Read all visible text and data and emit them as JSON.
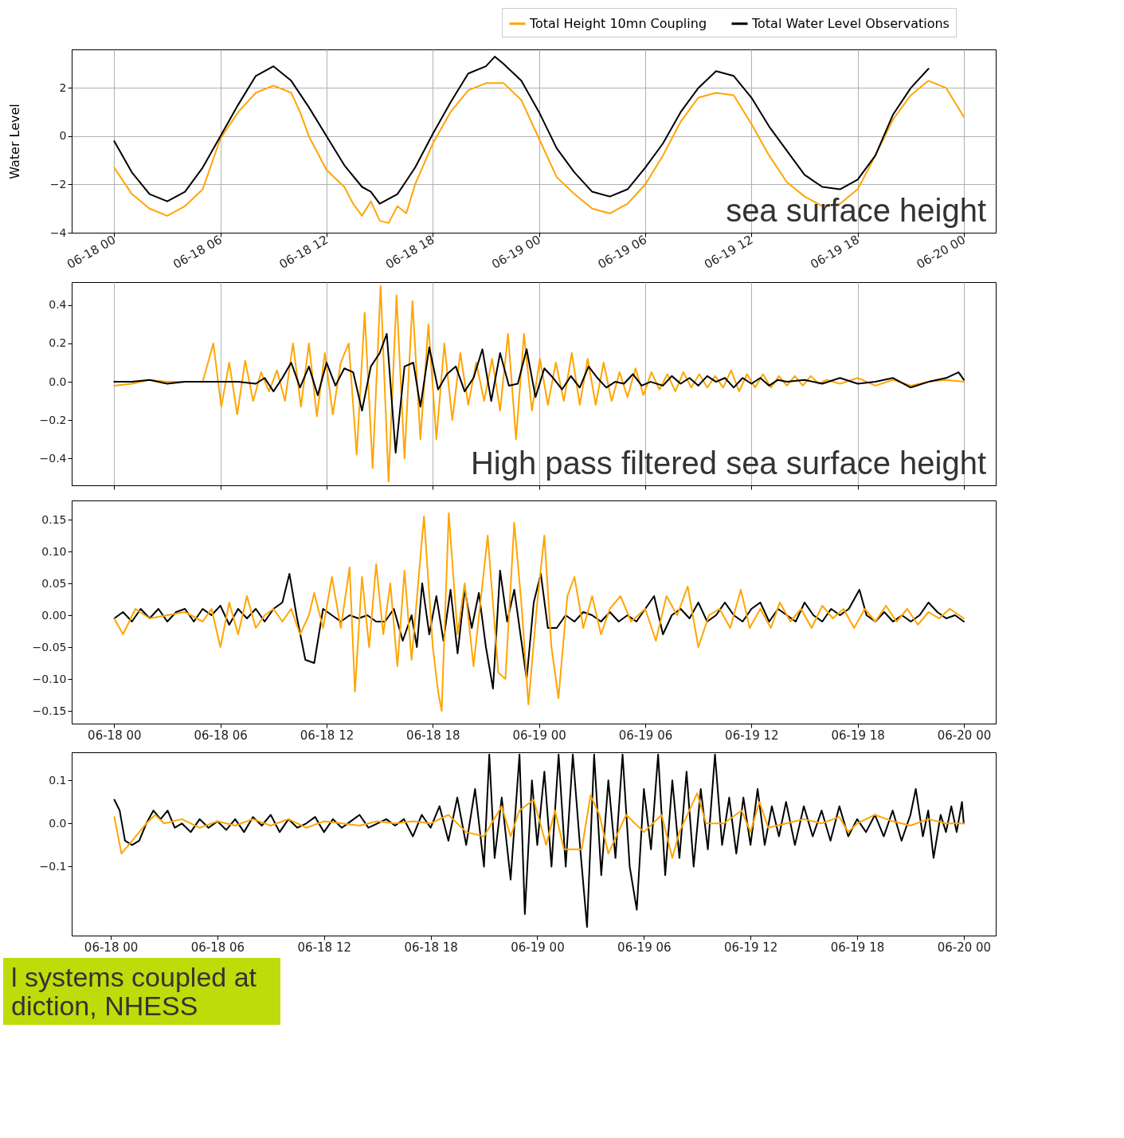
{
  "chart_data": [
    {
      "type": "line",
      "ylabel": "Water Level",
      "xlim": [
        "--06-17T21:36",
        "--06-20T01:48"
      ],
      "ylim": [
        -4,
        3.6
      ],
      "xticks": [
        {
          "value": "--06-18T00:00",
          "label": "06-18 00"
        },
        {
          "value": "--06-18T06:00",
          "label": "06-18 06"
        },
        {
          "value": "--06-18T12:00",
          "label": "06-18 12"
        },
        {
          "value": "--06-18T18:00",
          "label": "06-18 18"
        },
        {
          "value": "--06-19T00:00",
          "label": "06-19 00"
        },
        {
          "value": "--06-19T06:00",
          "label": "06-19 06"
        },
        {
          "value": "--06-19T12:00",
          "label": "06-19 12"
        },
        {
          "value": "--06-19T18:00",
          "label": "06-19 18"
        },
        {
          "value": "--06-20T00:00",
          "label": "06-20 00"
        }
      ],
      "yticks": [
        {
          "value": -4,
          "label": "−4"
        },
        {
          "value": -2,
          "label": "−2"
        },
        0,
        2
      ],
      "grid": true,
      "legend": "top right",
      "annotations": [
        "sea surface height"
      ],
      "series": [
        {
          "name": "Total Height 10mn Coupling",
          "color": "#ffa500",
          "x": [
            "--06-18T00:00",
            "--06-18T01:00",
            "--06-18T02:00",
            "--06-18T03:00",
            "--06-18T04:00",
            "--06-18T05:00",
            "--06-18T06:00",
            "--06-18T07:00",
            "--06-18T08:00",
            "--06-18T09:00",
            "--06-18T10:00",
            "--06-18T10:30",
            "--06-18T11:00",
            "--06-18T12:00",
            "--06-18T13:00",
            "--06-18T13:30",
            "--06-18T14:00",
            "--06-18T14:30",
            "--06-18T15:00",
            "--06-18T15:30",
            "--06-18T16:00",
            "--06-18T16:30",
            "--06-18T17:00",
            "--06-18T18:00",
            "--06-18T19:00",
            "--06-18T20:00",
            "--06-18T21:00",
            "--06-18T22:00",
            "--06-18T23:00",
            "--06-19T00:00",
            "--06-19T01:00",
            "--06-19T02:00",
            "--06-19T03:00",
            "--06-19T04:00",
            "--06-19T05:00",
            "--06-19T06:00",
            "--06-19T07:00",
            "--06-19T08:00",
            "--06-19T09:00",
            "--06-19T10:00",
            "--06-19T11:00",
            "--06-19T12:00",
            "--06-19T13:00",
            "--06-19T14:00",
            "--06-19T15:00",
            "--06-19T16:00",
            "--06-19T17:00",
            "--06-19T18:00",
            "--06-19T19:00",
            "--06-19T20:00",
            "--06-19T21:00",
            "--06-19T22:00",
            "--06-19T23:00",
            "--06-20T00:00"
          ],
          "values": [
            -1.3,
            -2.4,
            -3.0,
            -3.3,
            -2.9,
            -2.2,
            -0.1,
            1.0,
            1.8,
            2.1,
            1.8,
            1.0,
            0.0,
            -1.4,
            -2.1,
            -2.8,
            -3.3,
            -2.7,
            -3.5,
            -3.6,
            -2.9,
            -3.2,
            -2.0,
            -0.3,
            1.0,
            1.9,
            2.2,
            2.2,
            1.5,
            -0.1,
            -1.7,
            -2.4,
            -3.0,
            -3.2,
            -2.8,
            -2.0,
            -0.8,
            0.6,
            1.6,
            1.8,
            1.7,
            0.5,
            -0.8,
            -1.9,
            -2.5,
            -2.9,
            -2.8,
            -2.2,
            -0.8,
            0.7,
            1.7,
            2.3,
            2.0,
            0.8
          ]
        },
        {
          "name": "Total Water Level Observations",
          "color": "#000000",
          "x": [
            "--06-18T00:00",
            "--06-18T01:00",
            "--06-18T02:00",
            "--06-18T03:00",
            "--06-18T04:00",
            "--06-18T05:00",
            "--06-18T06:00",
            "--06-18T07:00",
            "--06-18T08:00",
            "--06-18T09:00",
            "--06-18T10:00",
            "--06-18T11:00",
            "--06-18T12:00",
            "--06-18T13:00",
            "--06-18T14:00",
            "--06-18T14:30",
            "--06-18T15:00",
            "--06-18T16:00",
            "--06-18T17:00",
            "--06-18T18:00",
            "--06-18T19:00",
            "--06-18T20:00",
            "--06-18T21:00",
            "--06-18T21:30",
            "--06-18T22:00",
            "--06-18T23:00",
            "--06-19T00:00",
            "--06-19T01:00",
            "--06-19T02:00",
            "--06-19T03:00",
            "--06-19T04:00",
            "--06-19T05:00",
            "--06-19T06:00",
            "--06-19T07:00",
            "--06-19T08:00",
            "--06-19T09:00",
            "--06-19T10:00",
            "--06-19T11:00",
            "--06-19T12:00",
            "--06-19T13:00",
            "--06-19T14:00",
            "--06-19T15:00",
            "--06-19T16:00",
            "--06-19T17:00",
            "--06-19T18:00",
            "--06-19T19:00",
            "--06-19T20:00",
            "--06-19T21:00",
            "--06-19T22:00"
          ],
          "values": [
            -0.2,
            -1.5,
            -2.4,
            -2.7,
            -2.3,
            -1.3,
            0.0,
            1.3,
            2.5,
            2.9,
            2.3,
            1.2,
            0.0,
            -1.2,
            -2.1,
            -2.3,
            -2.8,
            -2.4,
            -1.3,
            0.1,
            1.4,
            2.6,
            2.9,
            3.3,
            3.0,
            2.3,
            1.0,
            -0.5,
            -1.5,
            -2.3,
            -2.5,
            -2.2,
            -1.3,
            -0.3,
            1.0,
            2.0,
            2.7,
            2.5,
            1.6,
            0.4,
            -0.6,
            -1.6,
            -2.1,
            -2.2,
            -1.8,
            -0.8,
            0.9,
            2.0,
            2.8
          ]
        }
      ]
    },
    {
      "type": "line",
      "xlim": [
        "--06-17T21:36",
        "--06-20T01:48"
      ],
      "ylim": [
        -0.54,
        0.52
      ],
      "xticks": [
        {
          "value": "--06-18T00:00",
          "label": null
        },
        {
          "value": "--06-18T06:00",
          "label": null
        },
        {
          "value": "--06-18T12:00",
          "label": null
        },
        {
          "value": "--06-18T18:00",
          "label": null
        },
        {
          "value": "--06-19T00:00",
          "label": null
        },
        {
          "value": "--06-19T06:00",
          "label": null
        },
        {
          "value": "--06-19T12:00",
          "label": null
        },
        {
          "value": "--06-19T18:00",
          "label": null
        },
        {
          "value": "--06-20T00:00",
          "label": null
        }
      ],
      "yticks": [
        {
          "value": -0.4,
          "label": "−0.4"
        },
        {
          "value": -0.2,
          "label": "−0.2"
        },
        {
          "value": 0,
          "label": "0.0"
        },
        0.2,
        0.4
      ],
      "grid": "x",
      "tick_labels": "y",
      "annotations": [
        "High pass filtered sea surface height"
      ],
      "series": [
        {
          "color": "#ffa500",
          "x": [
            "--06-18T00:00",
            "--06-18T01:00",
            "--06-18T02:00",
            "--06-18T03:00",
            "--06-18T04:00",
            "--06-18T05:00",
            "--06-18T05:36",
            "--06-18T06:03",
            "--06-18T06:30",
            "--06-18T06:57",
            "--06-18T07:24",
            "--06-18T07:51",
            "--06-18T08:18",
            "--06-18T08:45",
            "--06-18T09:12",
            "--06-18T09:39",
            "--06-18T10:06",
            "--06-18T10:33",
            "--06-18T11:00",
            "--06-18T11:27",
            "--06-18T11:54",
            "--06-18T12:21",
            "--06-18T12:48",
            "--06-18T13:15",
            "--06-18T13:42",
            "--06-18T14:09",
            "--06-18T14:36",
            "--06-18T15:03",
            "--06-18T15:30",
            "--06-18T15:57",
            "--06-18T16:24",
            "--06-18T16:51",
            "--06-18T17:18",
            "--06-18T17:45",
            "--06-18T18:12",
            "--06-18T18:39",
            "--06-18T19:06",
            "--06-18T19:33",
            "--06-18T20:00",
            "--06-18T20:27",
            "--06-18T20:54",
            "--06-18T21:21",
            "--06-18T21:48",
            "--06-18T22:15",
            "--06-18T22:42",
            "--06-18T23:09",
            "--06-18T23:36",
            "--06-19T00:03",
            "--06-19T00:30",
            "--06-19T00:57",
            "--06-19T01:24",
            "--06-19T01:51",
            "--06-19T02:18",
            "--06-19T02:45",
            "--06-19T03:12",
            "--06-19T03:39",
            "--06-19T04:06",
            "--06-19T04:33",
            "--06-19T05:00",
            "--06-19T05:27",
            "--06-19T05:54",
            "--06-19T06:21",
            "--06-19T06:48",
            "--06-19T07:15",
            "--06-19T07:42",
            "--06-19T08:09",
            "--06-19T08:36",
            "--06-19T09:03",
            "--06-19T09:30",
            "--06-19T09:57",
            "--06-19T10:24",
            "--06-19T10:51",
            "--06-19T11:18",
            "--06-19T11:45",
            "--06-19T12:12",
            "--06-19T12:39",
            "--06-19T13:06",
            "--06-19T13:33",
            "--06-19T14:00",
            "--06-19T14:27",
            "--06-19T14:54",
            "--06-19T15:21",
            "--06-19T15:48",
            "--06-19T16:15",
            "--06-19T17:00",
            "--06-19T18:00",
            "--06-19T19:00",
            "--06-19T20:00",
            "--06-19T21:00",
            "--06-19T22:00",
            "--06-19T23:00",
            "--06-20T00:00"
          ],
          "values": [
            -0.02,
            -0.01,
            0.01,
            0.0,
            0.0,
            0.0,
            0.2,
            -0.13,
            0.1,
            -0.17,
            0.11,
            -0.1,
            0.05,
            -0.05,
            0.06,
            -0.1,
            0.2,
            -0.13,
            0.2,
            -0.18,
            0.15,
            -0.17,
            0.1,
            0.2,
            -0.38,
            0.36,
            -0.45,
            0.5,
            -0.52,
            0.45,
            -0.4,
            0.42,
            -0.3,
            0.3,
            -0.3,
            0.2,
            -0.2,
            0.15,
            -0.12,
            0.1,
            -0.1,
            0.12,
            -0.15,
            0.25,
            -0.3,
            0.25,
            -0.15,
            0.12,
            -0.12,
            0.1,
            -0.1,
            0.15,
            -0.12,
            0.12,
            -0.12,
            0.1,
            -0.1,
            0.05,
            -0.08,
            0.07,
            -0.07,
            0.05,
            -0.04,
            0.04,
            -0.05,
            0.05,
            -0.03,
            0.04,
            -0.03,
            0.03,
            -0.03,
            0.06,
            -0.05,
            0.04,
            -0.03,
            0.04,
            -0.03,
            0.03,
            -0.02,
            0.03,
            -0.02,
            0.03,
            -0.01,
            0.01,
            -0.01,
            0.02,
            -0.02,
            0.01,
            -0.02,
            0.0,
            0.01,
            0.0
          ]
        },
        {
          "color": "#000000",
          "x": [
            "--06-18T00:00",
            "--06-18T01:00",
            "--06-18T02:00",
            "--06-18T03:00",
            "--06-18T04:00",
            "--06-18T05:00",
            "--06-18T06:00",
            "--06-18T07:00",
            "--06-18T08:00",
            "--06-18T08:30",
            "--06-18T09:00",
            "--06-18T09:30",
            "--06-18T10:00",
            "--06-18T10:30",
            "--06-18T11:00",
            "--06-18T11:30",
            "--06-18T12:00",
            "--06-18T12:30",
            "--06-18T13:00",
            "--06-18T13:30",
            "--06-18T14:00",
            "--06-18T14:30",
            "--06-18T15:00",
            "--06-18T15:24",
            "--06-18T15:54",
            "--06-18T16:24",
            "--06-18T16:54",
            "--06-18T17:18",
            "--06-18T17:48",
            "--06-18T18:18",
            "--06-18T18:48",
            "--06-18T19:18",
            "--06-18T19:48",
            "--06-18T20:18",
            "--06-18T20:48",
            "--06-18T21:18",
            "--06-18T21:48",
            "--06-18T22:18",
            "--06-18T22:48",
            "--06-18T23:18",
            "--06-18T23:48",
            "--06-19T00:18",
            "--06-19T00:48",
            "--06-19T01:18",
            "--06-19T01:48",
            "--06-19T02:18",
            "--06-19T02:48",
            "--06-19T03:18",
            "--06-19T03:48",
            "--06-19T04:18",
            "--06-19T04:48",
            "--06-19T05:18",
            "--06-19T05:48",
            "--06-19T06:18",
            "--06-19T07:00",
            "--06-19T07:30",
            "--06-19T08:00",
            "--06-19T08:30",
            "--06-19T09:00",
            "--06-19T09:30",
            "--06-19T10:00",
            "--06-19T10:30",
            "--06-19T11:00",
            "--06-19T11:30",
            "--06-19T12:00",
            "--06-19T12:30",
            "--06-19T13:00",
            "--06-19T13:30",
            "--06-19T14:00",
            "--06-19T15:00",
            "--06-19T16:00",
            "--06-19T17:00",
            "--06-19T18:00",
            "--06-19T19:00",
            "--06-19T20:00",
            "--06-19T21:00",
            "--06-19T22:00",
            "--06-19T23:00",
            "--06-19T23:42",
            "--06-20T00:00"
          ],
          "values": [
            0.0,
            0.0,
            0.01,
            -0.01,
            0.0,
            0.0,
            0.0,
            0.0,
            -0.01,
            0.02,
            -0.05,
            0.02,
            0.1,
            -0.03,
            0.08,
            -0.07,
            0.1,
            -0.02,
            0.07,
            0.05,
            -0.15,
            0.08,
            0.15,
            0.25,
            -0.37,
            0.08,
            0.1,
            -0.13,
            0.18,
            -0.04,
            0.04,
            0.08,
            -0.05,
            0.02,
            0.17,
            -0.1,
            0.15,
            -0.02,
            -0.01,
            0.17,
            -0.08,
            0.07,
            0.02,
            -0.04,
            0.03,
            -0.03,
            0.08,
            0.02,
            -0.03,
            0.0,
            -0.01,
            0.04,
            -0.02,
            0.0,
            -0.02,
            0.03,
            -0.01,
            0.02,
            -0.02,
            0.03,
            0.0,
            0.02,
            -0.03,
            0.02,
            -0.01,
            0.02,
            -0.02,
            0.01,
            0.0,
            0.01,
            -0.01,
            0.02,
            -0.01,
            0.0,
            0.02,
            -0.03,
            0.0,
            0.02,
            0.05,
            0.01
          ]
        }
      ]
    },
    {
      "type": "line",
      "xlim": [
        "--06-17T21:36",
        "--06-20T01:48"
      ],
      "ylim": [
        -0.17,
        0.18
      ],
      "xticks": [
        {
          "value": "--06-18T00:00",
          "label": "06-18 00"
        },
        {
          "value": "--06-18T06:00",
          "label": "06-18 06"
        },
        {
          "value": "--06-18T12:00",
          "label": "06-18 12"
        },
        {
          "value": "--06-18T18:00",
          "label": "06-18 18"
        },
        {
          "value": "--06-19T00:00",
          "label": "06-19 00"
        },
        {
          "value": "--06-19T06:00",
          "label": "06-19 06"
        },
        {
          "value": "--06-19T12:00",
          "label": "06-19 12"
        },
        {
          "value": "--06-19T18:00",
          "label": "06-19 18"
        },
        {
          "value": "--06-20T00:00",
          "label": "06-20 00"
        }
      ],
      "yticks": [
        {
          "value": -0.15,
          "label": "−0.15"
        },
        {
          "value": -0.1,
          "label": "−0.10"
        },
        {
          "value": -0.05,
          "label": "−0.05"
        },
        {
          "value": 0,
          "label": "0.00"
        },
        0.05,
        {
          "value": 0.1,
          "label": "0.10"
        },
        0.15
      ],
      "series": [
        {
          "color": "#000000",
          "x": [
            "--06-18T00:00",
            "--06-18T00:30",
            "--06-18T01:00",
            "--06-18T01:30",
            "--06-18T02:00",
            "--06-18T02:30",
            "--06-18T03:00",
            "--06-18T03:30",
            "--06-18T04:00",
            "--06-18T04:30",
            "--06-18T05:00",
            "--06-18T05:30",
            "--06-18T06:00",
            "--06-18T06:30",
            "--06-18T07:00",
            "--06-18T07:30",
            "--06-18T08:00",
            "--06-18T08:30",
            "--06-18T09:00",
            "--06-18T09:30",
            "--06-18T09:54",
            "--06-18T10:18",
            "--06-18T10:48",
            "--06-18T11:18",
            "--06-18T11:48",
            "--06-18T12:18",
            "--06-18T12:48",
            "--06-18T13:18",
            "--06-18T13:48",
            "--06-18T14:18",
            "--06-18T14:48",
            "--06-18T15:18",
            "--06-18T15:48",
            "--06-18T16:18",
            "--06-18T16:48",
            "--06-18T17:06",
            "--06-18T17:24",
            "--06-18T17:48",
            "--06-18T18:12",
            "--06-18T18:36",
            "--06-18T19:00",
            "--06-18T19:24",
            "--06-18T19:48",
            "--06-18T20:12",
            "--06-18T20:36",
            "--06-18T21:00",
            "--06-18T21:24",
            "--06-18T21:48",
            "--06-18T22:12",
            "--06-18T22:36",
            "--06-18T23:00",
            "--06-18T23:18",
            "--06-18T23:42",
            "--06-19T00:06",
            "--06-19T00:30",
            "--06-19T01:00",
            "--06-19T01:30",
            "--06-19T02:00",
            "--06-19T02:30",
            "--06-19T03:00",
            "--06-19T03:30",
            "--06-19T04:00",
            "--06-19T04:30",
            "--06-19T05:00",
            "--06-19T05:30",
            "--06-19T06:00",
            "--06-19T06:30",
            "--06-19T07:00",
            "--06-19T07:30",
            "--06-19T08:00",
            "--06-19T08:30",
            "--06-19T09:00",
            "--06-19T09:30",
            "--06-19T10:00",
            "--06-19T10:30",
            "--06-19T11:00",
            "--06-19T11:30",
            "--06-19T12:00",
            "--06-19T12:30",
            "--06-19T13:00",
            "--06-19T13:30",
            "--06-19T14:00",
            "--06-19T14:30",
            "--06-19T15:00",
            "--06-19T15:30",
            "--06-19T16:00",
            "--06-19T16:30",
            "--06-19T17:00",
            "--06-19T17:30",
            "--06-19T18:06",
            "--06-19T18:30",
            "--06-19T19:00",
            "--06-19T19:30",
            "--06-19T20:00",
            "--06-19T20:30",
            "--06-19T21:00",
            "--06-19T21:30",
            "--06-19T22:00",
            "--06-19T22:30",
            "--06-19T23:00",
            "--06-19T23:30",
            "--06-20T00:00"
          ],
          "values": [
            -0.005,
            0.005,
            -0.01,
            0.01,
            -0.005,
            0.01,
            -0.01,
            0.005,
            0.01,
            -0.01,
            0.01,
            0.0,
            0.015,
            -0.015,
            0.01,
            -0.005,
            0.01,
            -0.01,
            0.01,
            0.02,
            0.065,
            0.0,
            -0.07,
            -0.075,
            0.01,
            0.0,
            -0.01,
            0.0,
            -0.005,
            0.0,
            -0.01,
            -0.01,
            0.01,
            -0.04,
            0.0,
            -0.05,
            0.05,
            -0.03,
            0.03,
            -0.04,
            0.04,
            -0.06,
            0.04,
            -0.02,
            0.035,
            -0.05,
            -0.115,
            0.07,
            -0.01,
            0.04,
            -0.04,
            -0.1,
            0.02,
            0.065,
            -0.02,
            -0.02,
            0.0,
            -0.01,
            0.005,
            0.0,
            -0.01,
            0.005,
            -0.01,
            0.0,
            -0.01,
            0.01,
            0.03,
            -0.03,
            0.0,
            0.01,
            -0.005,
            0.02,
            -0.01,
            0.0,
            0.02,
            0.0,
            -0.01,
            0.01,
            0.02,
            -0.01,
            0.01,
            0.0,
            -0.01,
            0.02,
            0.0,
            -0.01,
            0.01,
            0.0,
            0.01,
            0.04,
            0.0,
            -0.01,
            0.005,
            -0.01,
            0.0,
            -0.01,
            0.0,
            0.02,
            0.005,
            -0.005,
            0.0,
            -0.01
          ]
        },
        {
          "color": "#ffa500",
          "x": [
            "--06-18T00:00",
            "--06-18T00:30",
            "--06-18T01:12",
            "--06-18T02:00",
            "--06-18T03:00",
            "--06-18T04:00",
            "--06-18T05:00",
            "--06-18T05:30",
            "--06-18T06:00",
            "--06-18T06:30",
            "--06-18T07:00",
            "--06-18T07:30",
            "--06-18T08:00",
            "--06-18T08:30",
            "--06-18T09:00",
            "--06-18T09:30",
            "--06-18T10:00",
            "--06-18T10:30",
            "--06-18T11:00",
            "--06-18T11:18",
            "--06-18T11:48",
            "--06-18T12:18",
            "--06-18T12:48",
            "--06-18T13:18",
            "--06-18T13:36",
            "--06-18T14:00",
            "--06-18T14:24",
            "--06-18T14:48",
            "--06-18T15:12",
            "--06-18T15:36",
            "--06-18T16:00",
            "--06-18T16:24",
            "--06-18T16:48",
            "--06-18T17:30",
            "--06-18T18:00",
            "--06-18T18:18",
            "--06-18T18:30",
            "--06-18T18:54",
            "--06-18T19:24",
            "--06-18T19:48",
            "--06-18T20:18",
            "--06-18T21:06",
            "--06-18T21:42",
            "--06-18T22:06",
            "--06-18T22:36",
            "--06-18T23:00",
            "--06-18T23:24",
            "--06-18T23:54",
            "--06-19T00:18",
            "--06-19T00:42",
            "--06-19T01:06",
            "--06-19T01:36",
            "--06-19T02:00",
            "--06-19T02:30",
            "--06-19T03:00",
            "--06-19T03:30",
            "--06-19T04:00",
            "--06-19T04:36",
            "--06-19T05:12",
            "--06-19T06:00",
            "--06-19T06:36",
            "--06-19T07:12",
            "--06-19T07:48",
            "--06-19T08:24",
            "--06-19T09:00",
            "--06-19T09:36",
            "--06-19T10:12",
            "--06-19T10:48",
            "--06-19T11:24",
            "--06-19T11:54",
            "--06-19T12:30",
            "--06-19T13:06",
            "--06-19T13:36",
            "--06-19T14:12",
            "--06-19T14:48",
            "--06-19T15:24",
            "--06-19T16:00",
            "--06-19T16:36",
            "--06-19T17:12",
            "--06-19T17:48",
            "--06-19T18:24",
            "--06-19T19:00",
            "--06-19T19:36",
            "--06-19T20:12",
            "--06-19T20:48",
            "--06-19T21:24",
            "--06-19T22:00",
            "--06-19T22:36",
            "--06-19T23:12",
            "--06-20T00:00"
          ],
          "values": [
            -0.005,
            -0.03,
            0.01,
            -0.005,
            0.0,
            0.005,
            -0.01,
            0.01,
            -0.05,
            0.02,
            -0.03,
            0.03,
            -0.02,
            0.0,
            0.01,
            -0.01,
            0.01,
            -0.03,
            0.0,
            0.035,
            -0.02,
            0.06,
            -0.02,
            0.075,
            -0.12,
            0.06,
            -0.05,
            0.08,
            -0.03,
            0.05,
            -0.08,
            0.07,
            -0.07,
            0.155,
            -0.05,
            -0.12,
            -0.15,
            0.16,
            -0.03,
            0.05,
            -0.08,
            0.125,
            -0.09,
            -0.1,
            0.145,
            0.02,
            -0.14,
            0.02,
            0.125,
            -0.05,
            -0.13,
            0.03,
            0.06,
            -0.02,
            0.03,
            -0.03,
            0.01,
            0.03,
            -0.01,
            0.01,
            -0.04,
            0.03,
            0.0,
            0.045,
            -0.05,
            0.0,
            0.01,
            -0.02,
            0.04,
            -0.02,
            0.01,
            -0.02,
            0.02,
            -0.01,
            0.01,
            -0.02,
            0.015,
            -0.005,
            0.01,
            -0.02,
            0.01,
            -0.01,
            0.015,
            -0.01,
            0.01,
            -0.015,
            0.005,
            -0.005,
            0.01,
            -0.005
          ]
        }
      ]
    },
    {
      "type": "line",
      "xlim": [
        "--06-17T21:48",
        "--06-20T01:48"
      ],
      "ylim": [
        -0.26,
        0.165
      ],
      "xticks": [
        {
          "value": "--06-18T00:00",
          "label": "06-18 00"
        },
        {
          "value": "--06-18T06:00",
          "label": "06-18 06"
        },
        {
          "value": "--06-18T12:00",
          "label": "06-18 12"
        },
        {
          "value": "--06-18T18:00",
          "label": "06-18 18"
        },
        {
          "value": "--06-19T00:00",
          "label": "06-19 00"
        },
        {
          "value": "--06-19T06:00",
          "label": "06-19 06"
        },
        {
          "value": "--06-19T12:00",
          "label": "06-19 12"
        },
        {
          "value": "--06-19T18:00",
          "label": "06-19 18"
        },
        {
          "value": "--06-20T00:00",
          "label": "06-20 00"
        }
      ],
      "yticks": [
        {
          "value": -0.1,
          "label": "−0.1"
        },
        {
          "value": 0,
          "label": "0.0"
        },
        0.1
      ],
      "annotations": [
        "l systems coupled at",
        "diction, NHESS"
      ],
      "series": [
        {
          "color": "#000000",
          "x": [
            "--06-18T00:12",
            "--06-18T00:30",
            "--06-18T00:48",
            "--06-18T01:12",
            "--06-18T01:36",
            "--06-18T02:00",
            "--06-18T02:24",
            "--06-18T02:48",
            "--06-18T03:12",
            "--06-18T03:36",
            "--06-18T04:00",
            "--06-18T04:30",
            "--06-18T05:00",
            "--06-18T05:30",
            "--06-18T06:00",
            "--06-18T06:30",
            "--06-18T07:00",
            "--06-18T07:30",
            "--06-18T08:00",
            "--06-18T08:30",
            "--06-18T09:00",
            "--06-18T09:30",
            "--06-18T10:00",
            "--06-18T10:30",
            "--06-18T11:00",
            "--06-18T11:30",
            "--06-18T12:00",
            "--06-18T12:30",
            "--06-18T13:00",
            "--06-18T13:30",
            "--06-18T14:00",
            "--06-18T14:30",
            "--06-18T15:00",
            "--06-18T15:30",
            "--06-18T16:00",
            "--06-18T16:30",
            "--06-18T17:00",
            "--06-18T17:30",
            "--06-18T18:00",
            "--06-18T18:30",
            "--06-18T19:00",
            "--06-18T19:30",
            "--06-18T20:00",
            "--06-18T20:30",
            "--06-18T21:00",
            "--06-18T21:18",
            "--06-18T21:36",
            "--06-18T22:00",
            "--06-18T22:30",
            "--06-18T23:00",
            "--06-18T23:18",
            "--06-18T23:42",
            "--06-19T00:00",
            "--06-19T00:24",
            "--06-19T00:48",
            "--06-19T01:12",
            "--06-19T01:36",
            "--06-19T02:00",
            "--06-19T02:24",
            "--06-19T02:48",
            "--06-19T03:12",
            "--06-19T03:36",
            "--06-19T04:00",
            "--06-19T04:24",
            "--06-19T04:48",
            "--06-19T05:12",
            "--06-19T05:36",
            "--06-19T06:00",
            "--06-19T06:24",
            "--06-19T06:48",
            "--06-19T07:12",
            "--06-19T07:36",
            "--06-19T08:00",
            "--06-19T08:24",
            "--06-19T08:48",
            "--06-19T09:12",
            "--06-19T09:36",
            "--06-19T10:00",
            "--06-19T10:24",
            "--06-19T10:48",
            "--06-19T11:12",
            "--06-19T11:36",
            "--06-19T12:00",
            "--06-19T12:24",
            "--06-19T12:48",
            "--06-19T13:12",
            "--06-19T13:36",
            "--06-19T14:00",
            "--06-19T14:30",
            "--06-19T15:00",
            "--06-19T15:30",
            "--06-19T16:00",
            "--06-19T16:30",
            "--06-19T17:00",
            "--06-19T17:30",
            "--06-19T18:00",
            "--06-19T18:30",
            "--06-19T19:00",
            "--06-19T19:30",
            "--06-19T20:00",
            "--06-19T20:30",
            "--06-19T21:00",
            "--06-19T21:18",
            "--06-19T21:42",
            "--06-19T22:00",
            "--06-19T22:18",
            "--06-19T22:42",
            "--06-19T23:00",
            "--06-19T23:18",
            "--06-19T23:36",
            "--06-19T23:54",
            "--06-20T00:00"
          ],
          "values": [
            0.055,
            0.03,
            -0.04,
            -0.05,
            -0.04,
            0.0,
            0.03,
            0.01,
            0.03,
            -0.01,
            0.0,
            -0.02,
            0.01,
            -0.01,
            0.005,
            -0.015,
            0.01,
            -0.02,
            0.015,
            -0.005,
            0.02,
            -0.02,
            0.01,
            -0.01,
            0.0,
            0.015,
            -0.02,
            0.01,
            -0.01,
            0.005,
            0.02,
            -0.01,
            0.0,
            0.01,
            -0.005,
            0.01,
            -0.03,
            0.02,
            -0.01,
            0.04,
            -0.04,
            0.06,
            -0.05,
            0.08,
            -0.1,
            0.16,
            -0.08,
            0.06,
            -0.13,
            0.16,
            -0.21,
            0.1,
            -0.05,
            0.12,
            -0.1,
            0.16,
            -0.1,
            0.16,
            -0.05,
            -0.24,
            0.16,
            -0.12,
            0.1,
            -0.08,
            0.16,
            -0.1,
            -0.2,
            0.08,
            -0.06,
            0.16,
            -0.12,
            0.1,
            -0.08,
            0.12,
            -0.1,
            0.08,
            -0.06,
            0.16,
            -0.05,
            0.06,
            -0.07,
            0.06,
            -0.05,
            0.08,
            -0.05,
            0.04,
            -0.03,
            0.05,
            -0.05,
            0.04,
            -0.03,
            0.03,
            -0.04,
            0.04,
            -0.03,
            0.01,
            -0.02,
            0.02,
            -0.03,
            0.03,
            -0.04,
            0.02,
            0.08,
            -0.03,
            0.03,
            -0.08,
            0.02,
            -0.02,
            0.04,
            -0.02,
            0.05,
            0.0
          ]
        },
        {
          "color": "#ffa500",
          "x": [
            "--06-18T00:12",
            "--06-18T00:36",
            "--06-18T01:24",
            "--06-18T02:00",
            "--06-18T02:30",
            "--06-18T03:00",
            "--06-18T04:00",
            "--06-18T05:00",
            "--06-18T06:00",
            "--06-18T07:00",
            "--06-18T08:00",
            "--06-18T09:00",
            "--06-18T10:00",
            "--06-18T11:00",
            "--06-18T12:00",
            "--06-18T13:00",
            "--06-18T14:00",
            "--06-18T15:00",
            "--06-18T16:00",
            "--06-18T17:00",
            "--06-18T18:00",
            "--06-18T19:00",
            "--06-18T20:00",
            "--06-18T21:00",
            "--06-18T22:00",
            "--06-18T22:30",
            "--06-18T23:00",
            "--06-18T23:48",
            "--06-19T00:30",
            "--06-19T01:00",
            "--06-19T01:30",
            "--06-19T02:30",
            "--06-19T03:00",
            "--06-19T03:30",
            "--06-19T04:00",
            "--06-19T05:00",
            "--06-19T06:00",
            "--06-19T07:00",
            "--06-19T07:36",
            "--06-19T08:00",
            "--06-19T09:00",
            "--06-19T09:30",
            "--06-19T10:30",
            "--06-19T11:30",
            "--06-19T12:00",
            "--06-19T12:30",
            "--06-19T13:00",
            "--06-19T14:00",
            "--06-19T15:00",
            "--06-19T16:00",
            "--06-19T17:00",
            "--06-19T17:30",
            "--06-19T18:00",
            "--06-19T19:00",
            "--06-19T20:00",
            "--06-19T21:00",
            "--06-19T22:00",
            "--06-19T23:00",
            "--06-20T00:00"
          ],
          "values": [
            0.015,
            -0.07,
            -0.03,
            0.0,
            0.02,
            0.0,
            0.01,
            -0.01,
            0.005,
            -0.005,
            0.01,
            -0.005,
            0.01,
            -0.01,
            0.005,
            0.0,
            -0.005,
            0.005,
            0.0,
            0.005,
            0.0,
            0.02,
            -0.02,
            -0.03,
            0.04,
            -0.03,
            0.03,
            0.055,
            -0.05,
            0.03,
            -0.06,
            -0.06,
            0.065,
            0.02,
            -0.07,
            0.02,
            -0.02,
            0.02,
            -0.08,
            -0.02,
            0.07,
            0.0,
            0.0,
            0.03,
            -0.02,
            0.05,
            -0.01,
            0.0,
            0.01,
            0.0,
            0.015,
            -0.02,
            0.0,
            0.02,
            0.005,
            -0.005,
            0.01,
            0.0,
            0.0
          ]
        }
      ]
    }
  ]
}
